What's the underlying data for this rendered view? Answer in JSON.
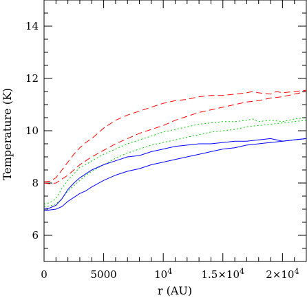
{
  "chart_data": {
    "type": "line",
    "xlabel": "r (AU)",
    "ylabel": "Temperature (K)",
    "xlim": [
      0,
      22000
    ],
    "ylim": [
      5.0,
      15.0
    ],
    "x_ticks": [
      {
        "value": 0,
        "label": "0"
      },
      {
        "value": 5000,
        "label": "5000"
      },
      {
        "value": 10000,
        "label": "10",
        "sup": "4"
      },
      {
        "value": 15000,
        "label": "1.5×10",
        "sup": "4"
      },
      {
        "value": 20000,
        "label": "2×10",
        "sup": "4"
      }
    ],
    "y_ticks": [
      {
        "value": 6,
        "label": "6"
      },
      {
        "value": 8,
        "label": "8"
      },
      {
        "value": 10,
        "label": "10"
      },
      {
        "value": 12,
        "label": "12"
      },
      {
        "value": 14,
        "label": "14"
      }
    ],
    "series": [
      {
        "color": "#ff0000",
        "dash": "dashed",
        "x": [
          0,
          500,
          1000,
          1500,
          2000,
          2500,
          3000,
          3500,
          4000,
          5000,
          6000,
          7000,
          8000,
          9000,
          10000,
          11000,
          12000,
          13000,
          14000,
          15000,
          16000,
          17000,
          17500,
          18000,
          19000,
          19500,
          20000,
          21000,
          22000
        ],
        "y": [
          8.05,
          8.07,
          8.2,
          8.5,
          8.8,
          9.1,
          9.35,
          9.55,
          9.7,
          10.1,
          10.4,
          10.6,
          10.75,
          10.9,
          11.05,
          11.15,
          11.2,
          11.3,
          11.35,
          11.35,
          11.4,
          11.45,
          11.5,
          11.45,
          11.4,
          11.5,
          11.45,
          11.5,
          11.55
        ]
      },
      {
        "color": "#ff0000",
        "dash": "dashed",
        "x": [
          0,
          500,
          1000,
          1500,
          2000,
          2500,
          3000,
          3500,
          4000,
          5000,
          6000,
          7000,
          8000,
          9000,
          10000,
          11000,
          12000,
          13000,
          14000,
          15000,
          16000,
          17000,
          18000,
          19000,
          20000,
          21000,
          22000
        ],
        "y": [
          8.0,
          7.97,
          8.0,
          8.15,
          8.3,
          8.5,
          8.7,
          8.85,
          9.0,
          9.25,
          9.5,
          9.7,
          9.9,
          10.05,
          10.2,
          10.4,
          10.55,
          10.7,
          10.8,
          10.9,
          11.0,
          11.1,
          11.15,
          11.25,
          11.3,
          11.4,
          11.5
        ]
      },
      {
        "color": "#00cc00",
        "dash": "dotted",
        "x": [
          0,
          500,
          1000,
          1500,
          2000,
          2500,
          3000,
          3500,
          4000,
          5000,
          6000,
          7000,
          8000,
          9000,
          10000,
          11000,
          12000,
          13000,
          14000,
          15000,
          16000,
          17000,
          17500,
          18000,
          19000,
          20000,
          21000,
          22000
        ],
        "y": [
          7.2,
          7.25,
          7.4,
          7.8,
          8.1,
          8.35,
          8.6,
          8.7,
          8.85,
          9.1,
          9.3,
          9.5,
          9.65,
          9.8,
          9.95,
          10.05,
          10.15,
          10.25,
          10.3,
          10.35,
          10.35,
          10.4,
          10.45,
          10.35,
          10.4,
          10.35,
          10.45,
          10.5
        ]
      },
      {
        "color": "#00cc00",
        "dash": "dotted",
        "x": [
          0,
          500,
          1000,
          1500,
          2000,
          2500,
          3000,
          3500,
          4000,
          5000,
          6000,
          7000,
          8000,
          9000,
          10000,
          11000,
          12000,
          13000,
          14000,
          15000,
          16000,
          17000,
          18000,
          19000,
          20000,
          21000,
          22000
        ],
        "y": [
          7.1,
          7.12,
          7.2,
          7.4,
          7.7,
          7.9,
          8.1,
          8.3,
          8.45,
          8.7,
          8.95,
          9.15,
          9.3,
          9.45,
          9.55,
          9.65,
          9.75,
          9.85,
          9.95,
          10.0,
          10.05,
          10.15,
          10.2,
          10.25,
          10.3,
          10.35,
          10.4
        ]
      },
      {
        "color": "#0000ff",
        "dash": "solid",
        "x": [
          0,
          500,
          1000,
          1500,
          2000,
          2500,
          3000,
          3500,
          4000,
          5000,
          6000,
          7000,
          8000,
          9000,
          10000,
          11000,
          12000,
          13000,
          14000,
          15000,
          16000,
          17000,
          18000,
          19000,
          19500,
          20000,
          21000,
          22000
        ],
        "y": [
          7.0,
          7.05,
          7.15,
          7.4,
          7.75,
          8.0,
          8.2,
          8.35,
          8.5,
          8.7,
          8.85,
          9.0,
          9.05,
          9.2,
          9.3,
          9.4,
          9.45,
          9.5,
          9.5,
          9.55,
          9.6,
          9.6,
          9.65,
          9.7,
          9.65,
          9.6,
          9.65,
          9.7
        ]
      },
      {
        "color": "#0000ff",
        "dash": "solid",
        "x": [
          0,
          500,
          1000,
          1500,
          2000,
          2500,
          3000,
          3500,
          4000,
          5000,
          6000,
          7000,
          8000,
          9000,
          10000,
          11000,
          12000,
          13000,
          14000,
          15000,
          16000,
          17000,
          18000,
          19000,
          20000,
          21000,
          22000
        ],
        "y": [
          6.95,
          6.97,
          7.0,
          7.1,
          7.3,
          7.45,
          7.6,
          7.7,
          7.85,
          8.1,
          8.3,
          8.45,
          8.55,
          8.7,
          8.8,
          8.9,
          9.0,
          9.1,
          9.2,
          9.3,
          9.35,
          9.45,
          9.5,
          9.55,
          9.6,
          9.65,
          9.7
        ]
      }
    ]
  }
}
